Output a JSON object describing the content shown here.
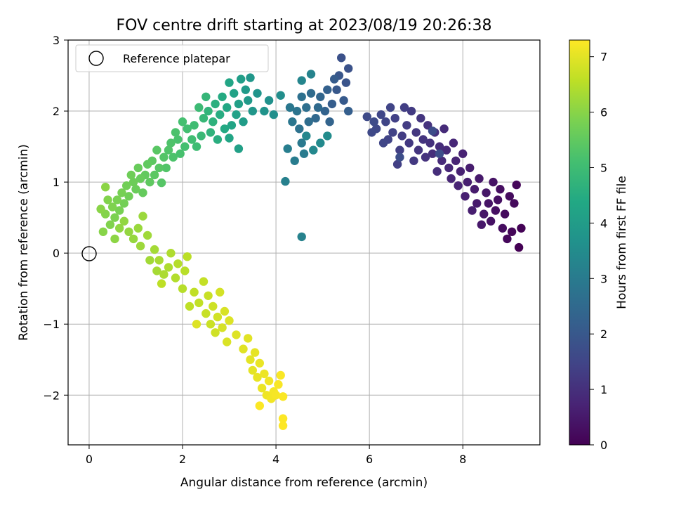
{
  "chart_data": {
    "type": "scatter",
    "title": "FOV centre drift starting at 2023/08/19 20:26:38",
    "xlabel": "Angular distance from reference (arcmin)",
    "ylabel": "Rotation from reference (arcmin)",
    "xlim": [
      -0.45,
      9.65
    ],
    "ylim": [
      -2.7,
      3.0
    ],
    "xticks": [
      0,
      2,
      4,
      6,
      8
    ],
    "xtick_labels": [
      "0",
      "2",
      "4",
      "6",
      "8"
    ],
    "yticks": [
      -2,
      -1,
      0,
      1,
      2,
      3
    ],
    "ytick_labels": [
      "−2",
      "−1",
      "0",
      "1",
      "2",
      "3"
    ],
    "grid": true,
    "colormap": "viridis",
    "colorbar": {
      "label": "Hours from first FF file",
      "range": [
        0,
        7.3
      ],
      "ticks": [
        0,
        1,
        2,
        3,
        4,
        5,
        6,
        7
      ],
      "tick_labels": [
        "0",
        "1",
        "2",
        "3",
        "4",
        "5",
        "6",
        "7"
      ]
    },
    "legend": {
      "position": "top-left",
      "entries": [
        {
          "label": "Reference platepar",
          "marker": "open-circle"
        }
      ]
    },
    "reference_point": {
      "x": 0,
      "y": 0
    },
    "points": [
      {
        "x": 9.2,
        "y": 0.08,
        "h": 0.0
      },
      {
        "x": 9.25,
        "y": 0.35,
        "h": 0.05
      },
      {
        "x": 9.15,
        "y": 0.96,
        "h": 0.1
      },
      {
        "x": 9.05,
        "y": 0.3,
        "h": 0.12
      },
      {
        "x": 8.95,
        "y": 0.2,
        "h": 0.15
      },
      {
        "x": 9.1,
        "y": 0.7,
        "h": 0.18
      },
      {
        "x": 8.9,
        "y": 0.55,
        "h": 0.2
      },
      {
        "x": 9.0,
        "y": 0.8,
        "h": 0.22
      },
      {
        "x": 8.85,
        "y": 0.35,
        "h": 0.25
      },
      {
        "x": 8.8,
        "y": 0.9,
        "h": 0.28
      },
      {
        "x": 8.7,
        "y": 0.6,
        "h": 0.3
      },
      {
        "x": 8.75,
        "y": 0.75,
        "h": 0.32
      },
      {
        "x": 8.6,
        "y": 0.45,
        "h": 0.35
      },
      {
        "x": 8.65,
        "y": 1.0,
        "h": 0.38
      },
      {
        "x": 8.55,
        "y": 0.7,
        "h": 0.4
      },
      {
        "x": 8.45,
        "y": 0.55,
        "h": 0.42
      },
      {
        "x": 8.5,
        "y": 0.85,
        "h": 0.45
      },
      {
        "x": 8.4,
        "y": 0.4,
        "h": 0.48
      },
      {
        "x": 8.35,
        "y": 1.05,
        "h": 0.5
      },
      {
        "x": 8.3,
        "y": 0.7,
        "h": 0.52
      },
      {
        "x": 8.25,
        "y": 0.9,
        "h": 0.55
      },
      {
        "x": 8.15,
        "y": 1.2,
        "h": 0.58
      },
      {
        "x": 8.2,
        "y": 0.6,
        "h": 0.6
      },
      {
        "x": 8.1,
        "y": 1.0,
        "h": 0.62
      },
      {
        "x": 8.05,
        "y": 0.8,
        "h": 0.65
      },
      {
        "x": 7.95,
        "y": 1.15,
        "h": 0.68
      },
      {
        "x": 8.0,
        "y": 1.4,
        "h": 0.7
      },
      {
        "x": 7.9,
        "y": 0.95,
        "h": 0.72
      },
      {
        "x": 7.85,
        "y": 1.3,
        "h": 0.75
      },
      {
        "x": 7.75,
        "y": 1.05,
        "h": 0.78
      },
      {
        "x": 7.8,
        "y": 1.55,
        "h": 0.8
      },
      {
        "x": 7.7,
        "y": 1.2,
        "h": 0.82
      },
      {
        "x": 7.65,
        "y": 1.45,
        "h": 0.85
      },
      {
        "x": 7.55,
        "y": 1.3,
        "h": 0.88
      },
      {
        "x": 7.6,
        "y": 1.75,
        "h": 0.9
      },
      {
        "x": 7.5,
        "y": 1.5,
        "h": 0.92
      },
      {
        "x": 7.45,
        "y": 1.15,
        "h": 0.95
      },
      {
        "x": 7.35,
        "y": 1.4,
        "h": 0.98
      },
      {
        "x": 7.4,
        "y": 1.7,
        "h": 1.0
      },
      {
        "x": 7.3,
        "y": 1.55,
        "h": 1.02
      },
      {
        "x": 7.2,
        "y": 1.35,
        "h": 1.05
      },
      {
        "x": 7.25,
        "y": 1.8,
        "h": 1.08
      },
      {
        "x": 7.15,
        "y": 1.6,
        "h": 1.1
      },
      {
        "x": 7.05,
        "y": 1.45,
        "h": 1.12
      },
      {
        "x": 7.1,
        "y": 1.9,
        "h": 1.15
      },
      {
        "x": 7.0,
        "y": 1.7,
        "h": 1.18
      },
      {
        "x": 6.95,
        "y": 1.3,
        "h": 1.2
      },
      {
        "x": 6.85,
        "y": 1.55,
        "h": 1.22
      },
      {
        "x": 6.9,
        "y": 2.0,
        "h": 1.25
      },
      {
        "x": 6.8,
        "y": 1.8,
        "h": 1.28
      },
      {
        "x": 6.7,
        "y": 1.65,
        "h": 1.3
      },
      {
        "x": 6.75,
        "y": 2.05,
        "h": 1.32
      },
      {
        "x": 6.65,
        "y": 1.45,
        "h": 1.35
      },
      {
        "x": 6.6,
        "y": 1.25,
        "h": 1.38
      },
      {
        "x": 6.55,
        "y": 1.9,
        "h": 1.4
      },
      {
        "x": 6.5,
        "y": 1.7,
        "h": 1.42
      },
      {
        "x": 6.4,
        "y": 1.6,
        "h": 1.45
      },
      {
        "x": 6.45,
        "y": 2.05,
        "h": 1.48
      },
      {
        "x": 6.35,
        "y": 1.85,
        "h": 1.5
      },
      {
        "x": 6.3,
        "y": 1.55,
        "h": 1.52
      },
      {
        "x": 6.25,
        "y": 1.95,
        "h": 1.55
      },
      {
        "x": 6.15,
        "y": 1.75,
        "h": 1.58
      },
      {
        "x": 6.05,
        "y": 1.7,
        "h": 1.6
      },
      {
        "x": 5.95,
        "y": 1.92,
        "h": 1.62
      },
      {
        "x": 6.1,
        "y": 1.85,
        "h": 1.65
      },
      {
        "x": 7.35,
        "y": 1.72,
        "h": 1.68
      },
      {
        "x": 7.5,
        "y": 1.4,
        "h": 1.7
      },
      {
        "x": 6.65,
        "y": 1.35,
        "h": 1.72
      },
      {
        "x": 5.4,
        "y": 2.75,
        "h": 1.8
      },
      {
        "x": 5.55,
        "y": 2.6,
        "h": 1.85
      },
      {
        "x": 5.5,
        "y": 2.4,
        "h": 1.9
      },
      {
        "x": 5.35,
        "y": 2.5,
        "h": 1.95
      },
      {
        "x": 5.3,
        "y": 2.3,
        "h": 2.0
      },
      {
        "x": 5.45,
        "y": 2.15,
        "h": 2.05
      },
      {
        "x": 5.25,
        "y": 2.45,
        "h": 2.1
      },
      {
        "x": 5.2,
        "y": 2.1,
        "h": 2.15
      },
      {
        "x": 5.55,
        "y": 2.0,
        "h": 2.2
      },
      {
        "x": 5.1,
        "y": 2.3,
        "h": 2.25
      },
      {
        "x": 5.05,
        "y": 2.0,
        "h": 2.3
      },
      {
        "x": 5.15,
        "y": 1.85,
        "h": 2.35
      },
      {
        "x": 4.95,
        "y": 2.2,
        "h": 2.4
      },
      {
        "x": 4.85,
        "y": 1.9,
        "h": 2.45
      },
      {
        "x": 4.9,
        "y": 2.05,
        "h": 2.5
      },
      {
        "x": 4.75,
        "y": 2.25,
        "h": 2.55
      },
      {
        "x": 4.7,
        "y": 1.85,
        "h": 2.6
      },
      {
        "x": 4.65,
        "y": 2.05,
        "h": 2.65
      },
      {
        "x": 4.55,
        "y": 2.2,
        "h": 2.7
      },
      {
        "x": 4.5,
        "y": 1.75,
        "h": 2.75
      },
      {
        "x": 4.45,
        "y": 2.0,
        "h": 2.8
      },
      {
        "x": 4.35,
        "y": 1.85,
        "h": 2.85
      },
      {
        "x": 4.3,
        "y": 2.05,
        "h": 2.9
      },
      {
        "x": 4.55,
        "y": 1.55,
        "h": 2.95
      },
      {
        "x": 4.6,
        "y": 1.4,
        "h": 3.0
      },
      {
        "x": 4.4,
        "y": 1.3,
        "h": 3.05
      },
      {
        "x": 4.25,
        "y": 1.47,
        "h": 3.1
      },
      {
        "x": 4.2,
        "y": 1.01,
        "h": 3.15
      },
      {
        "x": 4.55,
        "y": 0.23,
        "h": 3.2
      },
      {
        "x": 4.75,
        "y": 2.52,
        "h": 3.25
      },
      {
        "x": 4.55,
        "y": 2.43,
        "h": 3.3
      },
      {
        "x": 4.65,
        "y": 1.65,
        "h": 3.35
      },
      {
        "x": 4.8,
        "y": 1.45,
        "h": 3.4
      },
      {
        "x": 4.95,
        "y": 1.55,
        "h": 3.45
      },
      {
        "x": 5.1,
        "y": 1.65,
        "h": 3.5
      },
      {
        "x": 4.1,
        "y": 2.22,
        "h": 3.55
      },
      {
        "x": 3.95,
        "y": 1.95,
        "h": 3.6
      },
      {
        "x": 3.85,
        "y": 2.15,
        "h": 3.65
      },
      {
        "x": 3.75,
        "y": 2.0,
        "h": 3.7
      },
      {
        "x": 3.6,
        "y": 2.25,
        "h": 3.75
      },
      {
        "x": 3.5,
        "y": 2.0,
        "h": 3.8
      },
      {
        "x": 3.45,
        "y": 2.47,
        "h": 3.85
      },
      {
        "x": 3.4,
        "y": 2.15,
        "h": 3.9
      },
      {
        "x": 3.35,
        "y": 2.3,
        "h": 3.95
      },
      {
        "x": 3.3,
        "y": 1.85,
        "h": 4.0
      },
      {
        "x": 3.25,
        "y": 2.45,
        "h": 4.05
      },
      {
        "x": 3.2,
        "y": 2.1,
        "h": 4.1
      },
      {
        "x": 3.15,
        "y": 1.95,
        "h": 4.15
      },
      {
        "x": 3.1,
        "y": 2.25,
        "h": 4.2
      },
      {
        "x": 3.05,
        "y": 1.8,
        "h": 4.25
      },
      {
        "x": 3.0,
        "y": 2.4,
        "h": 4.3
      },
      {
        "x": 2.95,
        "y": 2.05,
        "h": 4.35
      },
      {
        "x": 2.9,
        "y": 1.75,
        "h": 4.4
      },
      {
        "x": 2.85,
        "y": 2.2,
        "h": 4.45
      },
      {
        "x": 2.8,
        "y": 1.95,
        "h": 4.5
      },
      {
        "x": 2.75,
        "y": 1.6,
        "h": 4.55
      },
      {
        "x": 2.7,
        "y": 2.1,
        "h": 4.6
      },
      {
        "x": 2.65,
        "y": 1.85,
        "h": 4.65
      },
      {
        "x": 2.6,
        "y": 1.7,
        "h": 4.7
      },
      {
        "x": 2.55,
        "y": 2.0,
        "h": 4.75
      },
      {
        "x": 2.5,
        "y": 2.2,
        "h": 4.8
      },
      {
        "x": 2.45,
        "y": 1.9,
        "h": 4.85
      },
      {
        "x": 2.4,
        "y": 1.65,
        "h": 4.9
      },
      {
        "x": 2.35,
        "y": 2.05,
        "h": 4.95
      },
      {
        "x": 2.3,
        "y": 1.5,
        "h": 5.0
      },
      {
        "x": 3.2,
        "y": 1.47,
        "h": 4.12
      },
      {
        "x": 3.0,
        "y": 1.62,
        "h": 4.28
      },
      {
        "x": 2.25,
        "y": 1.8,
        "h": 5.02
      },
      {
        "x": 2.2,
        "y": 1.6,
        "h": 5.05
      },
      {
        "x": 2.1,
        "y": 1.75,
        "h": 5.08
      },
      {
        "x": 2.05,
        "y": 1.5,
        "h": 5.1
      },
      {
        "x": 2.0,
        "y": 1.85,
        "h": 5.12
      },
      {
        "x": 1.95,
        "y": 1.4,
        "h": 5.15
      },
      {
        "x": 1.9,
        "y": 1.6,
        "h": 5.18
      },
      {
        "x": 1.85,
        "y": 1.7,
        "h": 5.2
      },
      {
        "x": 1.8,
        "y": 1.35,
        "h": 5.22
      },
      {
        "x": 1.75,
        "y": 1.55,
        "h": 5.25
      },
      {
        "x": 1.7,
        "y": 1.45,
        "h": 5.28
      },
      {
        "x": 1.65,
        "y": 1.2,
        "h": 5.3
      },
      {
        "x": 1.6,
        "y": 1.35,
        "h": 5.32
      },
      {
        "x": 1.55,
        "y": 0.99,
        "h": 5.35
      },
      {
        "x": 1.5,
        "y": 1.2,
        "h": 5.38
      },
      {
        "x": 1.45,
        "y": 1.45,
        "h": 5.4
      },
      {
        "x": 1.4,
        "y": 1.1,
        "h": 5.42
      },
      {
        "x": 1.35,
        "y": 1.3,
        "h": 5.45
      },
      {
        "x": 1.3,
        "y": 1.0,
        "h": 5.48
      },
      {
        "x": 1.25,
        "y": 1.25,
        "h": 5.5
      },
      {
        "x": 1.2,
        "y": 1.1,
        "h": 5.52
      },
      {
        "x": 1.15,
        "y": 0.85,
        "h": 5.55
      },
      {
        "x": 1.1,
        "y": 1.05,
        "h": 5.58
      },
      {
        "x": 1.05,
        "y": 1.2,
        "h": 5.6
      },
      {
        "x": 1.0,
        "y": 0.9,
        "h": 5.62
      },
      {
        "x": 0.95,
        "y": 1.0,
        "h": 5.65
      },
      {
        "x": 0.9,
        "y": 1.1,
        "h": 5.68
      },
      {
        "x": 0.85,
        "y": 0.8,
        "h": 5.7
      },
      {
        "x": 0.8,
        "y": 0.95,
        "h": 5.72
      },
      {
        "x": 0.75,
        "y": 0.7,
        "h": 5.75
      },
      {
        "x": 0.7,
        "y": 0.85,
        "h": 5.78
      },
      {
        "x": 0.65,
        "y": 0.6,
        "h": 5.8
      },
      {
        "x": 0.6,
        "y": 0.75,
        "h": 5.82
      },
      {
        "x": 0.55,
        "y": 0.5,
        "h": 5.85
      },
      {
        "x": 0.5,
        "y": 0.65,
        "h": 5.88
      },
      {
        "x": 0.45,
        "y": 0.4,
        "h": 5.9
      },
      {
        "x": 0.4,
        "y": 0.75,
        "h": 5.92
      },
      {
        "x": 0.35,
        "y": 0.55,
        "h": 5.95
      },
      {
        "x": 0.3,
        "y": 0.3,
        "h": 5.98
      },
      {
        "x": 0.25,
        "y": 0.62,
        "h": 6.0
      },
      {
        "x": 0.35,
        "y": 0.93,
        "h": 6.02
      },
      {
        "x": 0.55,
        "y": 0.2,
        "h": 6.05
      },
      {
        "x": 0.65,
        "y": 0.35,
        "h": 6.08
      },
      {
        "x": 0.75,
        "y": 0.45,
        "h": 6.1
      },
      {
        "x": 0.85,
        "y": 0.3,
        "h": 6.12
      },
      {
        "x": 0.95,
        "y": 0.2,
        "h": 6.15
      },
      {
        "x": 1.05,
        "y": 0.35,
        "h": 6.18
      },
      {
        "x": 1.15,
        "y": 0.52,
        "h": 6.2
      },
      {
        "x": 1.1,
        "y": 0.1,
        "h": 6.22
      },
      {
        "x": 1.25,
        "y": 0.25,
        "h": 6.25
      },
      {
        "x": 1.3,
        "y": -0.1,
        "h": 6.28
      },
      {
        "x": 1.4,
        "y": 0.05,
        "h": 6.3
      },
      {
        "x": 1.45,
        "y": -0.25,
        "h": 6.32
      },
      {
        "x": 1.5,
        "y": -0.1,
        "h": 6.35
      },
      {
        "x": 1.6,
        "y": -0.3,
        "h": 6.38
      },
      {
        "x": 1.7,
        "y": -0.2,
        "h": 6.4
      },
      {
        "x": 1.75,
        "y": 0.0,
        "h": 6.42
      },
      {
        "x": 1.85,
        "y": -0.35,
        "h": 6.45
      },
      {
        "x": 1.9,
        "y": -0.15,
        "h": 6.48
      },
      {
        "x": 2.0,
        "y": -0.5,
        "h": 6.5
      },
      {
        "x": 2.05,
        "y": -0.25,
        "h": 6.52
      },
      {
        "x": 2.1,
        "y": -0.05,
        "h": 6.55
      },
      {
        "x": 1.55,
        "y": -0.43,
        "h": 6.57
      },
      {
        "x": 2.15,
        "y": -0.75,
        "h": 6.58
      },
      {
        "x": 2.25,
        "y": -0.55,
        "h": 6.6
      },
      {
        "x": 2.35,
        "y": -0.7,
        "h": 6.62
      },
      {
        "x": 2.45,
        "y": -0.4,
        "h": 6.65
      },
      {
        "x": 2.5,
        "y": -0.85,
        "h": 6.68
      },
      {
        "x": 2.55,
        "y": -0.6,
        "h": 6.7
      },
      {
        "x": 2.6,
        "y": -1.0,
        "h": 6.72
      },
      {
        "x": 2.65,
        "y": -0.75,
        "h": 6.75
      },
      {
        "x": 2.7,
        "y": -1.12,
        "h": 6.78
      },
      {
        "x": 2.75,
        "y": -0.9,
        "h": 6.8
      },
      {
        "x": 2.8,
        "y": -0.55,
        "h": 6.82
      },
      {
        "x": 2.85,
        "y": -1.05,
        "h": 6.85
      },
      {
        "x": 2.9,
        "y": -0.82,
        "h": 6.88
      },
      {
        "x": 2.95,
        "y": -1.25,
        "h": 6.9
      },
      {
        "x": 3.0,
        "y": -0.95,
        "h": 6.92
      },
      {
        "x": 2.3,
        "y": -1.0,
        "h": 6.94
      },
      {
        "x": 3.15,
        "y": -1.15,
        "h": 6.95
      },
      {
        "x": 3.3,
        "y": -1.35,
        "h": 6.97
      },
      {
        "x": 3.4,
        "y": -1.2,
        "h": 6.98
      },
      {
        "x": 3.45,
        "y": -1.5,
        "h": 7.0
      },
      {
        "x": 3.5,
        "y": -1.65,
        "h": 7.02
      },
      {
        "x": 3.55,
        "y": -1.4,
        "h": 7.04
      },
      {
        "x": 3.6,
        "y": -1.75,
        "h": 7.06
      },
      {
        "x": 3.65,
        "y": -1.55,
        "h": 7.08
      },
      {
        "x": 3.7,
        "y": -1.9,
        "h": 7.1
      },
      {
        "x": 3.75,
        "y": -1.7,
        "h": 7.12
      },
      {
        "x": 3.8,
        "y": -2.0,
        "h": 7.14
      },
      {
        "x": 3.85,
        "y": -1.8,
        "h": 7.16
      },
      {
        "x": 3.9,
        "y": -2.05,
        "h": 7.18
      },
      {
        "x": 3.95,
        "y": -1.95,
        "h": 7.2
      },
      {
        "x": 4.0,
        "y": -2.0,
        "h": 7.22
      },
      {
        "x": 4.05,
        "y": -1.85,
        "h": 7.24
      },
      {
        "x": 4.1,
        "y": -1.72,
        "h": 7.26
      },
      {
        "x": 4.15,
        "y": -2.02,
        "h": 7.27
      },
      {
        "x": 3.65,
        "y": -2.15,
        "h": 7.28
      },
      {
        "x": 4.15,
        "y": -2.33,
        "h": 7.29
      },
      {
        "x": 4.15,
        "y": -2.43,
        "h": 7.3
      }
    ]
  }
}
